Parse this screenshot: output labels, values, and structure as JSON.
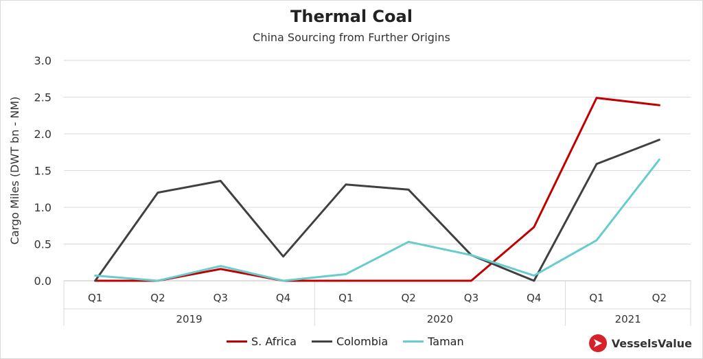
{
  "colors": {
    "s_africa": "#c00000",
    "colombia": "#404040",
    "taman": "#66cccc",
    "brand": "#d6202a"
  },
  "brand": {
    "name": "VesselsValue",
    "icon": "vesselsvalue-logo-icon"
  },
  "chart_data": {
    "type": "line",
    "title": "Thermal Coal",
    "subtitle": "China Sourcing from Further Origins",
    "ylabel": "Cargo Miles (DWT bn - NM)",
    "xlabel": "",
    "ylim": [
      0,
      3.0
    ],
    "yticks": [
      "0.0",
      "0.5",
      "1.0",
      "1.5",
      "2.0",
      "2.5",
      "3.0"
    ],
    "categories": [
      "Q1",
      "Q2",
      "Q3",
      "Q4",
      "Q1",
      "Q2",
      "Q3",
      "Q4",
      "Q1",
      "Q2"
    ],
    "groups": [
      {
        "label": "2019",
        "count": 4
      },
      {
        "label": "2020",
        "count": 4
      },
      {
        "label": "2021",
        "count": 2
      }
    ],
    "grid": true,
    "legend_position": "bottom",
    "series": [
      {
        "name": "S. Africa",
        "values": [
          0.0,
          0.0,
          0.16,
          0.0,
          0.0,
          0.0,
          0.0,
          0.73,
          2.49,
          2.39
        ]
      },
      {
        "name": "Colombia",
        "values": [
          0.0,
          1.2,
          1.36,
          0.33,
          1.31,
          1.24,
          0.35,
          0.0,
          1.59,
          1.92
        ]
      },
      {
        "name": "Taman",
        "values": [
          0.07,
          0.0,
          0.2,
          0.0,
          0.09,
          0.53,
          0.35,
          0.07,
          0.55,
          1.65
        ]
      }
    ]
  }
}
